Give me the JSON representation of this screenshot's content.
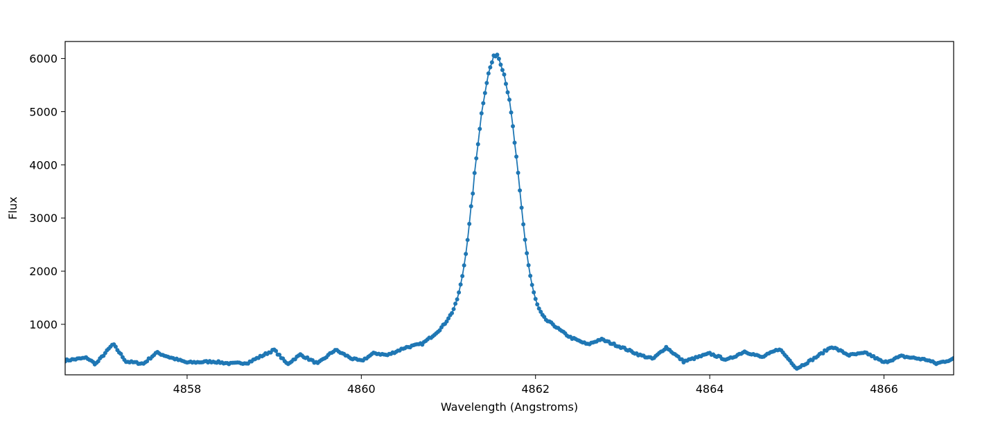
{
  "chart_data": {
    "type": "line",
    "title": "",
    "xlabel": "Wavelength (Angstroms)",
    "ylabel": "Flux",
    "xlim": [
      4856.6,
      4866.8
    ],
    "ylim": [
      50,
      6320
    ],
    "xticks": [
      4858,
      4860,
      4862,
      4864,
      4866
    ],
    "xtick_labels": [
      "4858",
      "4860",
      "4862",
      "4864",
      "4866"
    ],
    "yticks": [
      1000,
      2000,
      3000,
      4000,
      5000,
      6000
    ],
    "ytick_labels": [
      "1000",
      "2000",
      "3000",
      "4000",
      "5000",
      "6000"
    ],
    "grid": false,
    "legend": "none",
    "series": [
      {
        "color": "#1f77b4",
        "marker": "circle",
        "x_start": 4856.6,
        "x_step": 0.02,
        "peak": {
          "x": 4861.55,
          "y": 6000
        },
        "baseline_points": [
          [
            4856.6,
            320
          ],
          [
            4856.85,
            370
          ],
          [
            4856.95,
            250
          ],
          [
            4857.15,
            630
          ],
          [
            4857.3,
            300
          ],
          [
            4857.5,
            260
          ],
          [
            4857.65,
            470
          ],
          [
            4857.8,
            380
          ],
          [
            4858.0,
            280
          ],
          [
            4858.3,
            300
          ],
          [
            4858.5,
            260
          ],
          [
            4858.7,
            280
          ],
          [
            4859.0,
            520
          ],
          [
            4859.15,
            250
          ],
          [
            4859.3,
            430
          ],
          [
            4859.5,
            260
          ],
          [
            4859.7,
            520
          ],
          [
            4859.9,
            350
          ],
          [
            4860.0,
            310
          ],
          [
            4860.15,
            460
          ],
          [
            4860.3,
            420
          ],
          [
            4860.5,
            560
          ],
          [
            4860.7,
            630
          ],
          [
            4860.85,
            800
          ],
          [
            4861.0,
            950
          ],
          [
            4862.2,
            950
          ],
          [
            4862.4,
            750
          ],
          [
            4862.6,
            620
          ],
          [
            4862.75,
            720
          ],
          [
            4863.0,
            560
          ],
          [
            4863.2,
            420
          ],
          [
            4863.35,
            350
          ],
          [
            4863.5,
            570
          ],
          [
            4863.7,
            300
          ],
          [
            4864.0,
            450
          ],
          [
            4864.2,
            330
          ],
          [
            4864.4,
            490
          ],
          [
            4864.6,
            380
          ],
          [
            4864.8,
            540
          ],
          [
            4865.0,
            170
          ],
          [
            4865.2,
            360
          ],
          [
            4865.4,
            580
          ],
          [
            4865.6,
            420
          ],
          [
            4865.8,
            460
          ],
          [
            4866.0,
            280
          ],
          [
            4866.2,
            400
          ],
          [
            4866.5,
            330
          ],
          [
            4866.6,
            260
          ],
          [
            4866.8,
            350
          ]
        ]
      }
    ]
  }
}
